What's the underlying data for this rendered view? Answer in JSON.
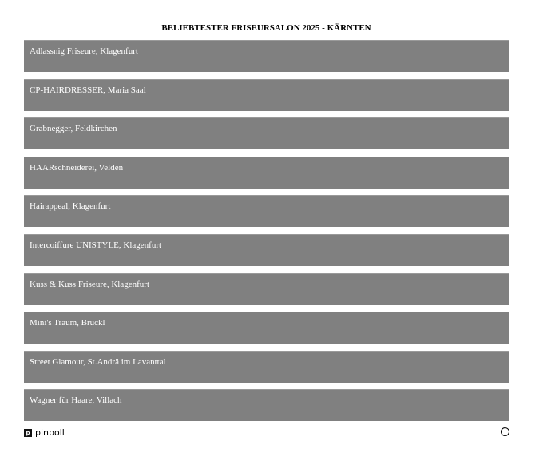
{
  "title": "BELIEBTESTER FRISEURSALON 2025 - KÄRNTEN",
  "options": [
    {
      "label": "Adlassnig Friseure, Klagenfurt"
    },
    {
      "label": "CP-HAIRDRESSER, Maria Saal"
    },
    {
      "label": "Grabnegger, Feldkirchen"
    },
    {
      "label": "HAARschneiderei, Velden"
    },
    {
      "label": "Hairappeal, Klagenfurt"
    },
    {
      "label": "Intercoiffure UNISTYLE, Klagenfurt"
    },
    {
      "label": "Kuss & Kuss Friseure, Klagenfurt"
    },
    {
      "label": "Mini's Traum, Brückl"
    },
    {
      "label": "Street Glamour, St.Andrä im Lavanttal"
    },
    {
      "label": "Wagner für Haare, Villach"
    }
  ],
  "footer": {
    "brand": "pinpoll",
    "logo_letter": "p",
    "info_icon": "info-icon"
  },
  "colors": {
    "option_bg": "#808080",
    "option_text": "#ffffff"
  }
}
